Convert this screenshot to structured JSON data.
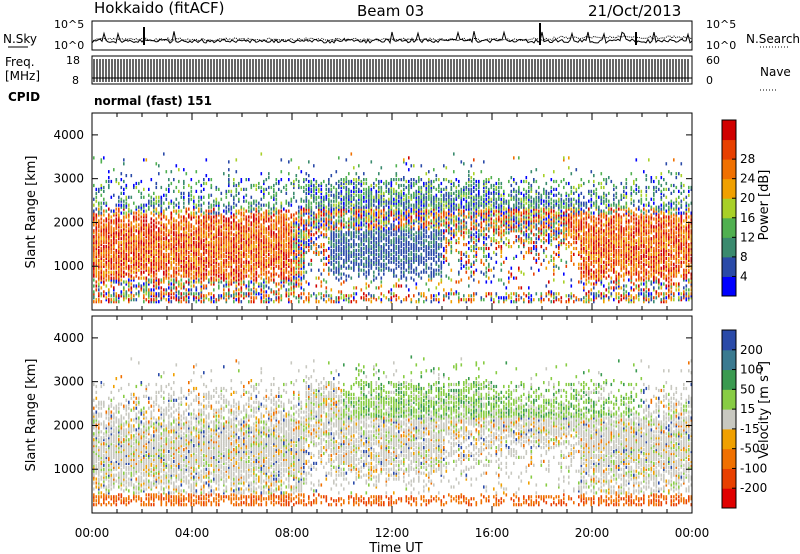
{
  "header": {
    "station": "Hokkaido (fitACF)",
    "beam": "Beam 03",
    "date": "21/Oct/2013"
  },
  "nsky": {
    "label": "N.Sky",
    "ticks": [
      "10^5",
      "10^0"
    ],
    "right_ticks": [
      "10^5",
      "10^0"
    ],
    "right_label": "N.Search"
  },
  "freq": {
    "label_line1": "Freq.",
    "label_line2": "[MHz]",
    "ticks": [
      "18",
      "8"
    ],
    "right_ticks": [
      "60",
      "0"
    ],
    "right_label": "Nave"
  },
  "cpid": {
    "label": "CPID",
    "value": "normal (fast) 151"
  },
  "chart_data": [
    {
      "type": "heatmap",
      "ylabel": "Slant Range [km]",
      "xlabel": "Time UT",
      "yticks": [
        "1000",
        "2000",
        "3000",
        "4000"
      ],
      "xticks": [
        "00:00",
        "04:00",
        "08:00",
        "12:00",
        "16:00",
        "20:00",
        "00:00"
      ],
      "colorbar_label": "Power [dB]",
      "colorbar_ticks": [
        "4",
        "8",
        "12",
        "16",
        "20",
        "24",
        "28"
      ],
      "colorbar_colors": [
        "#0000ff",
        "#2a4aa8",
        "#3a8a6e",
        "#50b050",
        "#a8d028",
        "#f0a000",
        "#f07000",
        "#e84000",
        "#d00000"
      ]
    },
    {
      "type": "heatmap",
      "ylabel": "Slant Range [km]",
      "xlabel": "Time UT",
      "yticks": [
        "1000",
        "2000",
        "3000",
        "4000"
      ],
      "xticks": [
        "00:00",
        "04:00",
        "08:00",
        "12:00",
        "16:00",
        "20:00",
        "00:00"
      ],
      "colorbar_label": "Velocity [m s^-1]",
      "colorbar_ticks": [
        "200",
        "100",
        "50",
        "15",
        "-15",
        "-50",
        "-100",
        "-200"
      ],
      "colorbar_colors": [
        "#2a4aa8",
        "#3a7a90",
        "#3a9a50",
        "#88cc44",
        "#c8c8c0",
        "#f0a000",
        "#f07000",
        "#e84000",
        "#e00000"
      ]
    }
  ]
}
